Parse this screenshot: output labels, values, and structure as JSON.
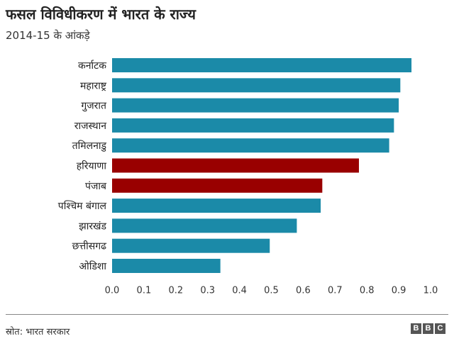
{
  "header": {
    "title": "फसल विविधीकरण में भारत के राज्य",
    "subtitle": "2014-15 के आंकड़े"
  },
  "footer": {
    "source": "स्रोत: भारत सरकार",
    "logo_letters": [
      "B",
      "B",
      "C"
    ]
  },
  "colors": {
    "default_bar": "#1b8aa8",
    "highlight_bar": "#990000",
    "label_text": "#222222",
    "tick_text": "#333333"
  },
  "chart_data": {
    "type": "bar",
    "orientation": "horizontal",
    "categories": [
      "कर्नाटक",
      "महाराष्ट्र",
      "गुजरात",
      "राजस्थान",
      "तमिलनाडु",
      "हरियाणा",
      "पंजाब",
      "पश्चिम बंगाल",
      "झारखंड",
      "छत्तीसगढ",
      "ओडिशा"
    ],
    "values": [
      0.94,
      0.905,
      0.9,
      0.885,
      0.87,
      0.775,
      0.66,
      0.655,
      0.58,
      0.495,
      0.34
    ],
    "highlighted": [
      "हरियाणा",
      "पंजाब"
    ],
    "xlim": [
      0,
      1.0
    ],
    "xticks": [
      "0.0",
      "0.1",
      "0.2",
      "0.3",
      "0.4",
      "0.5",
      "0.6",
      "0.7",
      "0.8",
      "0.9",
      "1.0"
    ],
    "grid": false,
    "legend": "none"
  }
}
